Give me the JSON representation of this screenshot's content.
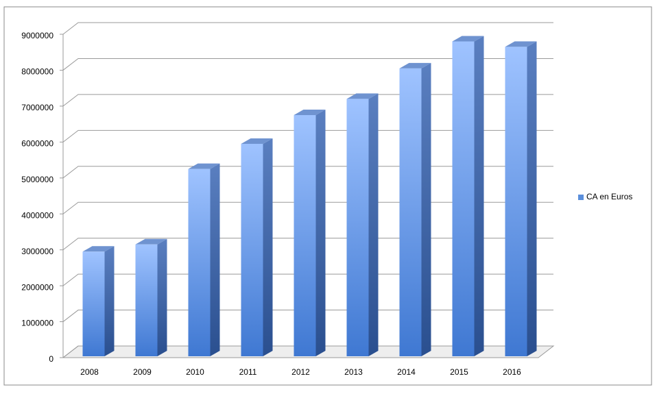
{
  "chart_data": {
    "type": "bar",
    "categories": [
      "2008",
      "2009",
      "2010",
      "2011",
      "2012",
      "2013",
      "2014",
      "2015",
      "2016"
    ],
    "series": [
      {
        "name": "CA en Euros",
        "color": "#5b8fdc",
        "values": [
          2950000,
          3150000,
          5250000,
          5950000,
          6750000,
          7200000,
          8050000,
          8800000,
          8650000
        ]
      }
    ],
    "ylim": [
      0,
      9000000
    ],
    "yticks": [
      0,
      1000000,
      2000000,
      3000000,
      4000000,
      5000000,
      6000000,
      7000000,
      8000000,
      9000000
    ],
    "grid": true,
    "legend": "right"
  }
}
